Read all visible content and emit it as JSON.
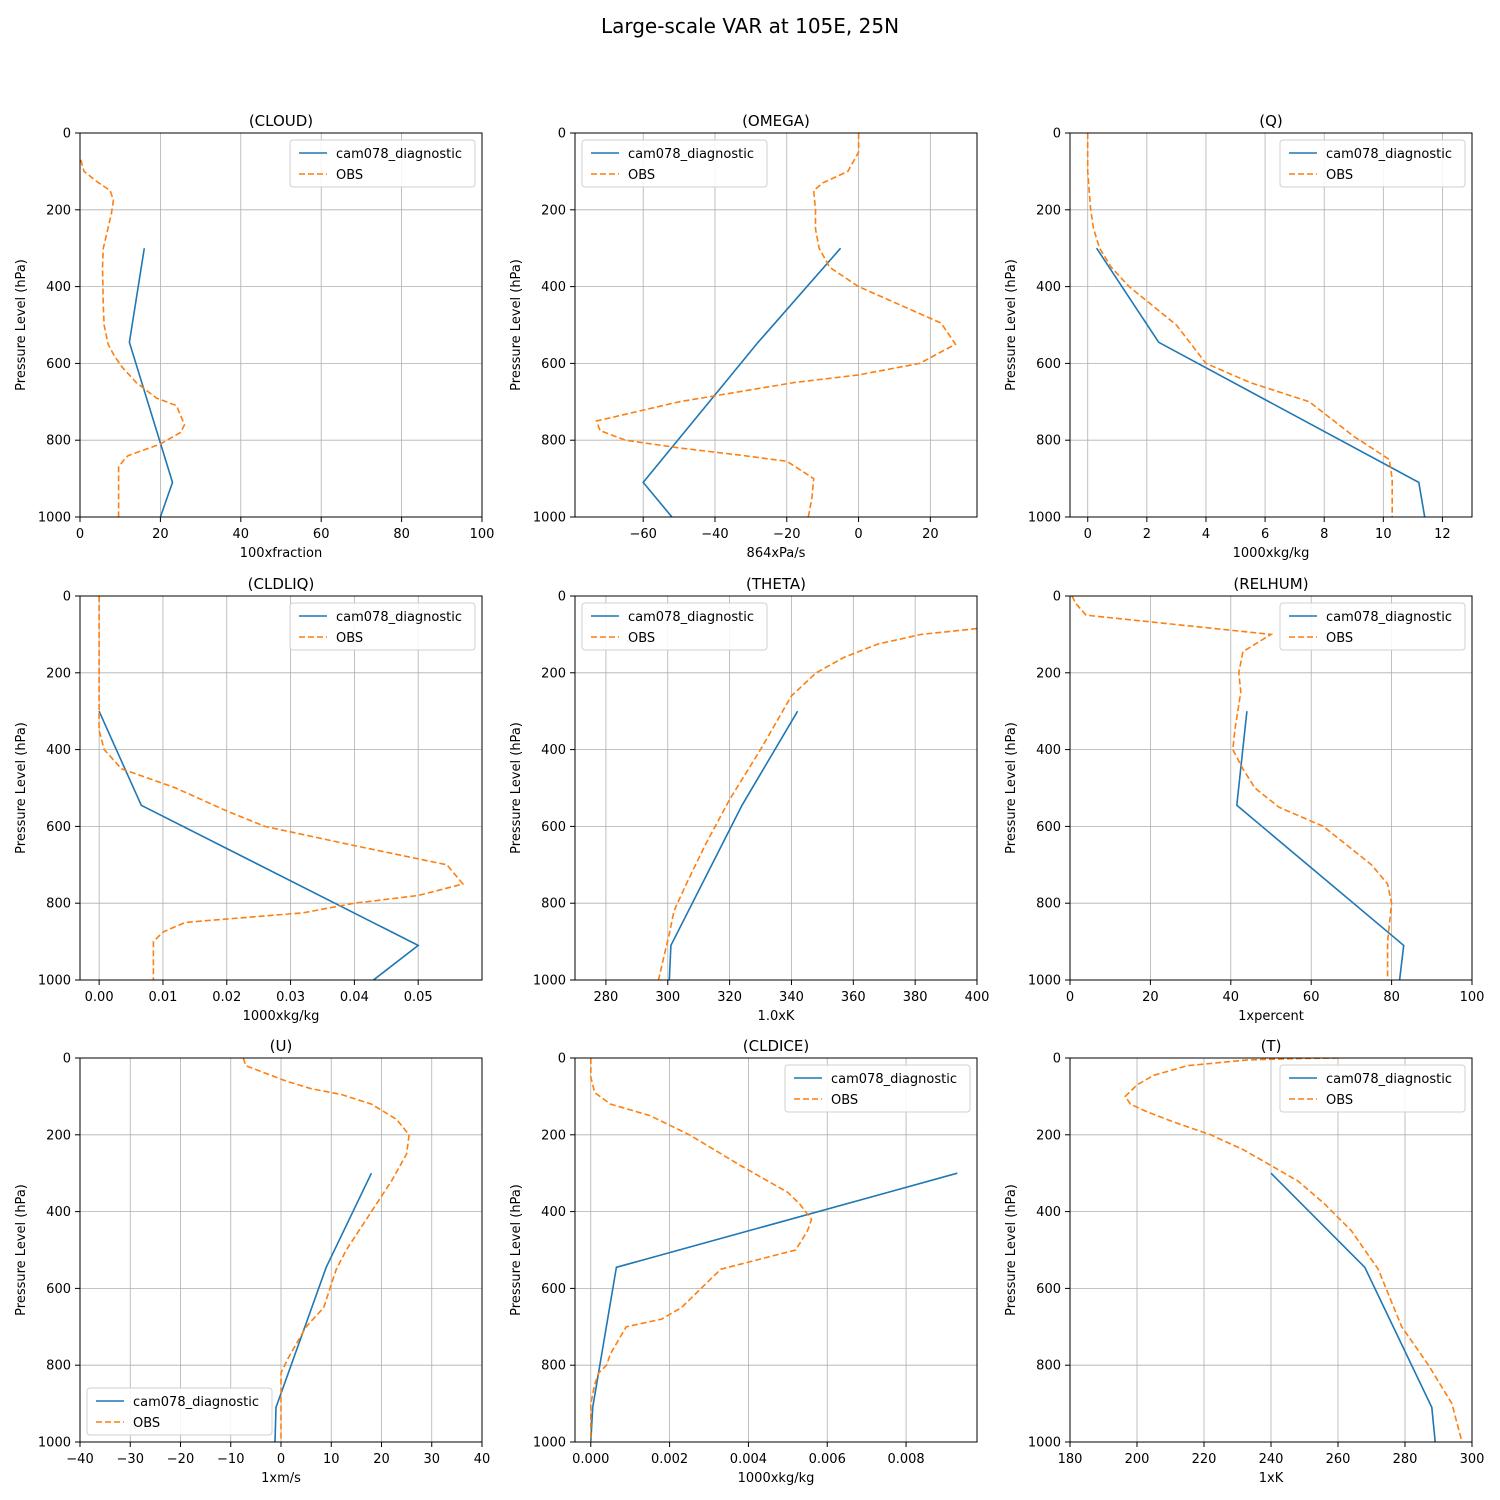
{
  "figure": {
    "title": "Large-scale VAR at 105E, 25N"
  },
  "colors": {
    "model": "#1f77b4",
    "obs": "#ff7f0e",
    "grid": "#b0b0b0"
  },
  "chart_data": [
    {
      "type": "line",
      "title": "(CLOUD)",
      "xlabel": "100xfraction",
      "ylabel": "Pressure Level (hPa)",
      "xlim": [
        0,
        100
      ],
      "ylim": [
        1000,
        0
      ],
      "xticks": [
        0,
        20,
        40,
        60,
        80,
        100
      ],
      "yticks": [
        0,
        200,
        400,
        600,
        800,
        1000
      ],
      "grid": true,
      "legend_loc": "upper right",
      "series": [
        {
          "name": "cam078_diagnostic",
          "style": "solid",
          "x": [
            16,
            12.3,
            23,
            20
          ],
          "y": [
            300,
            545,
            910,
            1000
          ]
        },
        {
          "name": "OBS",
          "style": "dashed",
          "x": [
            0.2,
            1,
            4,
            7.5,
            8.3,
            7.8,
            5.8,
            5.6,
            5.8,
            6,
            7,
            8.5,
            10.5,
            14,
            19,
            24,
            26,
            25,
            20,
            12,
            11,
            9.6,
            9.6
          ],
          "y": [
            70,
            100,
            125,
            150,
            175,
            210,
            300,
            350,
            450,
            500,
            550,
            580,
            610,
            650,
            690,
            710,
            760,
            780,
            810,
            840,
            850,
            870,
            1000
          ]
        }
      ]
    },
    {
      "type": "line",
      "title": "(OMEGA)",
      "xlabel": "864xPa/s",
      "ylabel": "Pressure Level (hPa)",
      "xlim": [
        -79,
        33
      ],
      "ylim": [
        1000,
        0
      ],
      "xticks": [
        -60,
        -40,
        -20,
        0,
        20
      ],
      "yticks": [
        0,
        200,
        400,
        600,
        800,
        1000
      ],
      "grid": true,
      "legend_loc": "upper left",
      "series": [
        {
          "name": "cam078_diagnostic",
          "style": "solid",
          "x": [
            -5,
            -28,
            -60,
            -52
          ],
          "y": [
            300,
            545,
            910,
            1000
          ]
        },
        {
          "name": "OBS",
          "style": "dashed",
          "x": [
            0,
            0,
            -3,
            -10,
            -12.5,
            -12,
            -12,
            -11,
            -8,
            0,
            23,
            27,
            17,
            0,
            -18,
            -50,
            -73,
            -72,
            -65,
            -50,
            -32,
            -20,
            -12.5,
            -13,
            -14
          ],
          "y": [
            0,
            50,
            100,
            130,
            150,
            200,
            250,
            300,
            350,
            400,
            495,
            550,
            600,
            630,
            650,
            700,
            750,
            775,
            800,
            820,
            840,
            855,
            900,
            950,
            1000
          ]
        }
      ]
    },
    {
      "type": "line",
      "title": "(Q)",
      "xlabel": "1000xkg/kg",
      "ylabel": "Pressure Level (hPa)",
      "xlim": [
        -0.6,
        13
      ],
      "ylim": [
        1000,
        0
      ],
      "xticks": [
        0,
        2,
        4,
        6,
        8,
        10,
        12
      ],
      "yticks": [
        0,
        200,
        400,
        600,
        800,
        1000
      ],
      "grid": true,
      "legend_loc": "upper right",
      "series": [
        {
          "name": "cam078_diagnostic",
          "style": "solid",
          "x": [
            0.3,
            2.4,
            11.2,
            11.4
          ],
          "y": [
            300,
            545,
            910,
            1000
          ]
        },
        {
          "name": "OBS",
          "style": "dashed",
          "x": [
            0,
            0,
            0.05,
            0.1,
            0.2,
            0.4,
            0.8,
            1.4,
            2.2,
            3,
            4,
            5.5,
            7.5,
            9,
            10.2,
            10.3,
            10.3
          ],
          "y": [
            0,
            100,
            150,
            200,
            250,
            300,
            350,
            400,
            450,
            500,
            600,
            650,
            700,
            790,
            850,
            900,
            1000
          ]
        }
      ]
    },
    {
      "type": "line",
      "title": "(CLDLIQ)",
      "xlabel": "1000xkg/kg",
      "ylabel": "Pressure Level (hPa)",
      "xlim": [
        -0.003,
        0.06
      ],
      "ylim": [
        1000,
        0
      ],
      "xticks": [
        0.0,
        0.01,
        0.02,
        0.03,
        0.04,
        0.05
      ],
      "xtick_labels": [
        "0.00",
        "0.01",
        "0.02",
        "0.03",
        "0.04",
        "0.05"
      ],
      "yticks": [
        0,
        200,
        400,
        600,
        800,
        1000
      ],
      "grid": true,
      "legend_loc": "upper right",
      "series": [
        {
          "name": "cam078_diagnostic",
          "style": "solid",
          "x": [
            0,
            0.0066,
            0.05,
            0.043
          ],
          "y": [
            300,
            545,
            910,
            1000
          ]
        },
        {
          "name": "OBS",
          "style": "dashed",
          "x": [
            0,
            0,
            0,
            0,
            0.0008,
            0.0035,
            0.012,
            0.02,
            0.026,
            0.04,
            0.0545,
            0.057,
            0.05,
            0.04,
            0.032,
            0.0135,
            0.01,
            0.0085,
            0.0085
          ],
          "y": [
            0,
            100,
            200,
            350,
            400,
            450,
            500,
            560,
            600,
            650,
            700,
            750,
            780,
            800,
            825,
            850,
            875,
            900,
            1000
          ]
        }
      ]
    },
    {
      "type": "line",
      "title": "(THETA)",
      "xlabel": "1.0xK",
      "ylabel": "Pressure Level (hPa)",
      "xlim": [
        270,
        400
      ],
      "ylim": [
        1000,
        0
      ],
      "xticks": [
        280,
        300,
        320,
        340,
        360,
        380,
        400
      ],
      "yticks": [
        0,
        200,
        400,
        600,
        800,
        1000
      ],
      "grid": true,
      "legend_loc": "upper left",
      "series": [
        {
          "name": "cam078_diagnostic",
          "style": "solid",
          "x": [
            342,
            324,
            301,
            300.5
          ],
          "y": [
            300,
            545,
            910,
            1000
          ]
        },
        {
          "name": "OBS",
          "style": "dashed",
          "x": [
            400,
            382,
            368,
            357,
            348,
            340,
            330,
            320,
            312,
            306,
            302,
            300.5,
            299,
            297
          ],
          "y": [
            85,
            100,
            125,
            160,
            200,
            260,
            400,
            530,
            650,
            750,
            820,
            880,
            930,
            1000
          ]
        }
      ]
    },
    {
      "type": "line",
      "title": "(RELHUM)",
      "xlabel": "1xpercent",
      "ylabel": "Pressure Level (hPa)",
      "xlim": [
        0,
        100
      ],
      "ylim": [
        1000,
        0
      ],
      "xticks": [
        0,
        20,
        40,
        60,
        80,
        100
      ],
      "yticks": [
        0,
        200,
        400,
        600,
        800,
        1000
      ],
      "grid": true,
      "legend_loc": "upper right",
      "series": [
        {
          "name": "cam078_diagnostic",
          "style": "solid",
          "x": [
            44,
            41.5,
            83,
            82
          ],
          "y": [
            300,
            545,
            910,
            1000
          ]
        },
        {
          "name": "OBS",
          "style": "dashed",
          "x": [
            0.5,
            1.5,
            4,
            50,
            43,
            42,
            42.5,
            41,
            40.5,
            43,
            46,
            52,
            63,
            75,
            79,
            80,
            79.5,
            79,
            79
          ],
          "y": [
            0,
            20,
            50,
            100,
            145,
            200,
            250,
            350,
            400,
            450,
            500,
            550,
            600,
            700,
            750,
            800,
            850,
            900,
            1000
          ]
        }
      ]
    },
    {
      "type": "line",
      "title": "(U)",
      "xlabel": "1xm/s",
      "ylabel": "Pressure Level (hPa)",
      "xlim": [
        -40,
        40
      ],
      "ylim": [
        1000,
        0
      ],
      "xticks": [
        -40,
        -30,
        -20,
        -10,
        0,
        10,
        20,
        30,
        40
      ],
      "yticks": [
        0,
        200,
        400,
        600,
        800,
        1000
      ],
      "grid": true,
      "legend_loc": "lower left",
      "series": [
        {
          "name": "cam078_diagnostic",
          "style": "solid",
          "x": [
            18,
            9,
            -1,
            -1.2
          ],
          "y": [
            300,
            545,
            910,
            1000
          ]
        },
        {
          "name": "OBS",
          "style": "dashed",
          "x": [
            -7.5,
            -7,
            -3,
            1,
            6,
            12,
            18,
            23,
            25.5,
            25,
            22,
            18,
            13,
            11,
            8.5,
            5,
            1.5,
            0,
            0,
            0
          ],
          "y": [
            0,
            20,
            40,
            60,
            80,
            95,
            120,
            160,
            200,
            250,
            320,
            400,
            500,
            550,
            650,
            700,
            780,
            820,
            900,
            1000
          ]
        }
      ]
    },
    {
      "type": "line",
      "title": "(CLDICE)",
      "xlabel": "1000xkg/kg",
      "ylabel": "Pressure Level (hPa)",
      "xlim": [
        -0.0004,
        0.0098
      ],
      "ylim": [
        1000,
        0
      ],
      "xticks": [
        0.0,
        0.002,
        0.004,
        0.006,
        0.008
      ],
      "xtick_labels": [
        "0.000",
        "0.002",
        "0.004",
        "0.006",
        "0.008"
      ],
      "yticks": [
        0,
        200,
        400,
        600,
        800,
        1000
      ],
      "grid": true,
      "legend_loc": "upper right",
      "series": [
        {
          "name": "cam078_diagnostic",
          "style": "solid",
          "x": [
            0.0093,
            0.00065,
            5e-05,
            0
          ],
          "y": [
            300,
            545,
            910,
            1000
          ]
        },
        {
          "name": "OBS",
          "style": "dashed",
          "x": [
            0,
            0,
            0.0001,
            0.0005,
            0.0015,
            0.0025,
            0.0038,
            0.005,
            0.0053,
            0.0056,
            0.0055,
            0.0052,
            0.0033,
            0.0028,
            0.0023,
            0.0018,
            0.0009,
            0.0005,
            0.0004,
            0.0002,
            0.0001,
            0,
            0
          ],
          "y": [
            0,
            50,
            90,
            120,
            150,
            200,
            280,
            350,
            380,
            420,
            450,
            500,
            550,
            600,
            650,
            680,
            700,
            770,
            800,
            820,
            850,
            900,
            1000
          ]
        }
      ]
    },
    {
      "type": "line",
      "title": "(T)",
      "xlabel": "1xK",
      "ylabel": "Pressure Level (hPa)",
      "xlim": [
        180,
        300
      ],
      "ylim": [
        1000,
        0
      ],
      "xticks": [
        180,
        200,
        220,
        240,
        260,
        280,
        300
      ],
      "yticks": [
        0,
        200,
        400,
        600,
        800,
        1000
      ],
      "grid": true,
      "legend_loc": "upper right",
      "series": [
        {
          "name": "cam078_diagnostic",
          "style": "solid",
          "x": [
            240,
            268,
            288,
            289
          ],
          "y": [
            300,
            545,
            910,
            1000
          ]
        },
        {
          "name": "OBS",
          "style": "dashed",
          "x": [
            260,
            250,
            233,
            215,
            205,
            200,
            196.5,
            198,
            203,
            212,
            222,
            232,
            240,
            248,
            256,
            264,
            272,
            279,
            287,
            294,
            297
          ],
          "y": [
            0,
            1,
            5,
            20,
            45,
            70,
            100,
            120,
            140,
            170,
            200,
            240,
            280,
            320,
            380,
            450,
            550,
            700,
            800,
            900,
            1000
          ]
        }
      ]
    }
  ]
}
